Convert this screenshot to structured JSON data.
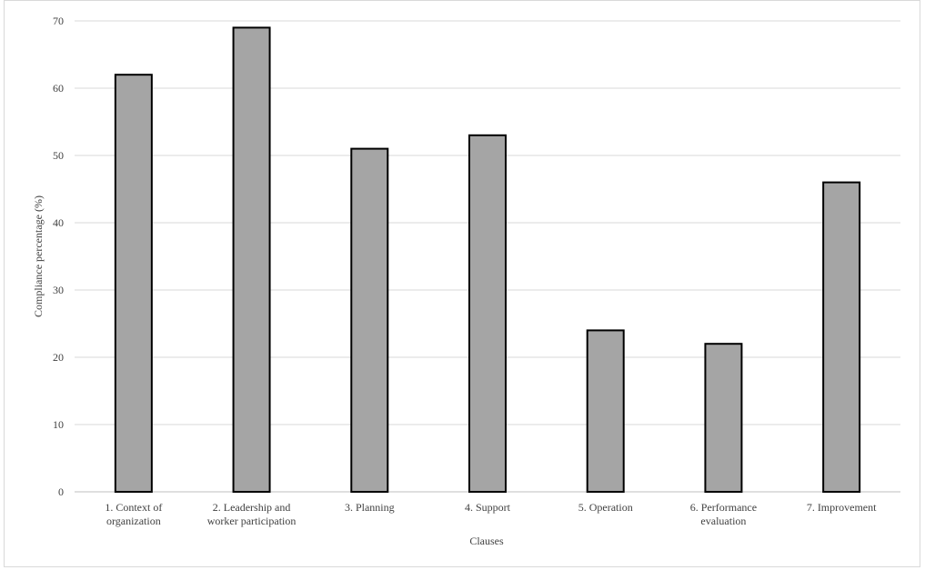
{
  "chart_data": {
    "type": "bar",
    "categories": [
      [
        "1. Context of",
        "organization"
      ],
      [
        "2. Leadership and",
        "worker participation"
      ],
      [
        "3. Planning"
      ],
      [
        "4. Support"
      ],
      [
        "5. Operation"
      ],
      [
        "6. Performance",
        "evaluation"
      ],
      [
        "7. Improvement"
      ]
    ],
    "values": [
      62,
      69,
      51,
      53,
      24,
      22,
      46
    ],
    "xlabel": "Clauses",
    "ylabel": "Compliance percentage (%)",
    "ylim": [
      0,
      70
    ],
    "yticks": [
      0,
      10,
      20,
      30,
      40,
      50,
      60,
      70
    ],
    "grid": true,
    "colors": {
      "bar_fill": "#a5a5a5",
      "bar_stroke": "#000000",
      "grid": "#d9d9d9"
    }
  }
}
